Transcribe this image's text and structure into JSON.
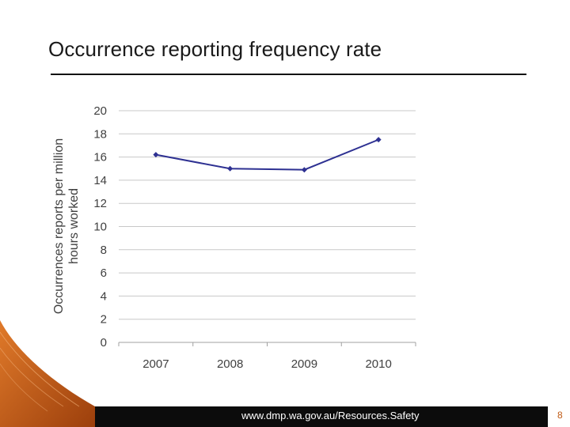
{
  "slide": {
    "title": "Occurrence reporting frequency rate",
    "footer_url": "www.dmp.wa.gov.au/Resources.Safety",
    "page_number": "8"
  },
  "colors": {
    "series_line": "#2e3192",
    "gridline": "#c8c8c8",
    "axis_text": "#404040",
    "footer_bg": "#0c0c0c",
    "accent_orange": "#c05a14"
  },
  "chart_data": {
    "type": "line",
    "title": "",
    "xlabel": "",
    "ylabel": "Occurrences reports per million hours worked",
    "categories": [
      "2007",
      "2008",
      "2009",
      "2010"
    ],
    "series": [
      {
        "values": [
          16.2,
          15.0,
          14.9,
          17.5
        ]
      }
    ],
    "ylim": [
      0,
      20
    ],
    "yticks": [
      "0",
      "2",
      "4",
      "6",
      "8",
      "10",
      "12",
      "14",
      "16",
      "18",
      "20"
    ],
    "grid": true,
    "legend": "none"
  }
}
